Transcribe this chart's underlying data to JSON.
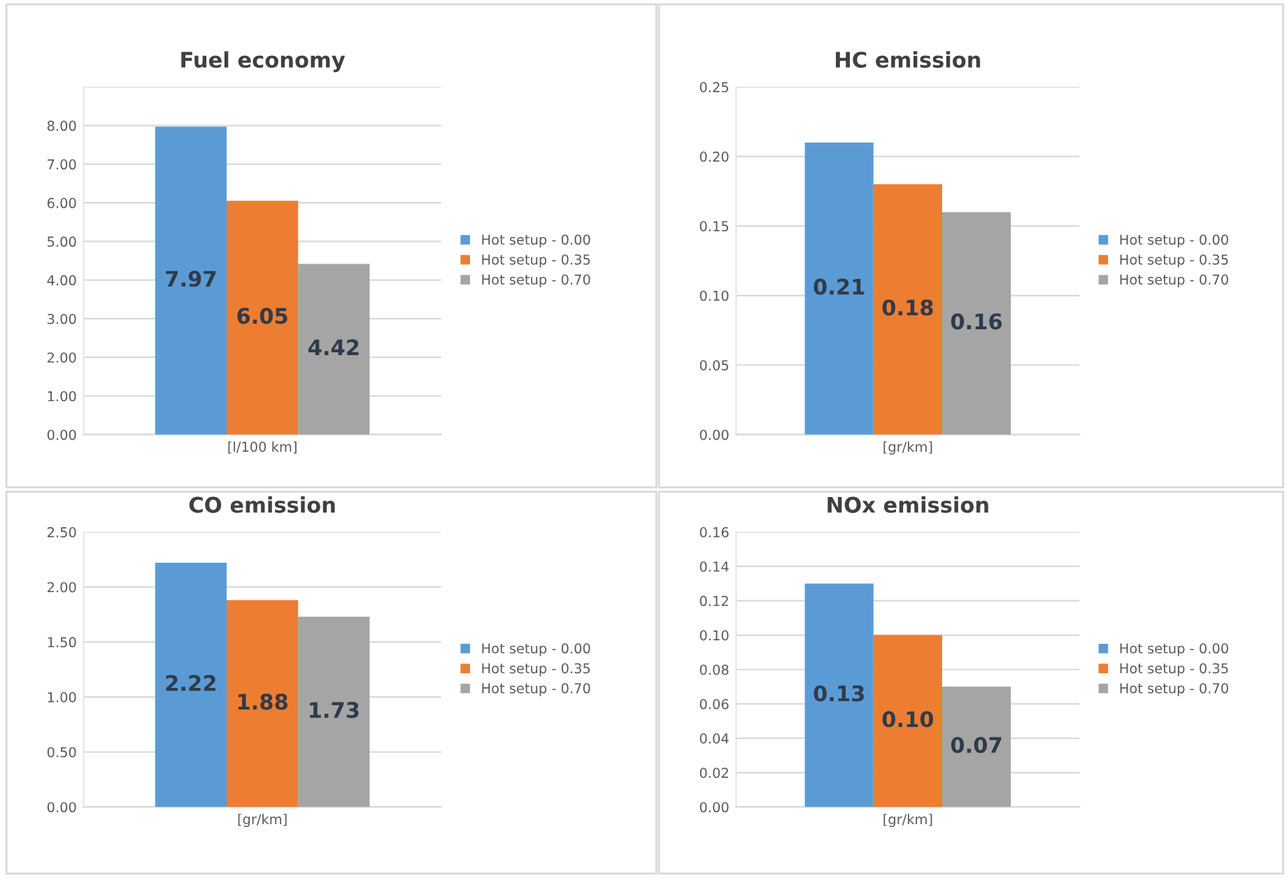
{
  "chart_data": [
    {
      "type": "bar",
      "title": "Fuel economy",
      "categories": [
        "[l/100 km]"
      ],
      "series": [
        {
          "name": "Hot setup - 0.00",
          "color": "#5b9bd5",
          "values": [
            7.97
          ],
          "value_labels": [
            "7.97"
          ]
        },
        {
          "name": "Hot setup - 0.35",
          "color": "#ed7d31",
          "values": [
            6.05
          ],
          "value_labels": [
            "6.05"
          ]
        },
        {
          "name": "Hot setup - 0.70",
          "color": "#a5a5a5",
          "values": [
            4.42
          ],
          "value_labels": [
            "4.42"
          ]
        }
      ],
      "ylim": [
        0,
        9
      ],
      "yticks": [
        {
          "value": 0,
          "label": "0.00"
        },
        {
          "value": 1,
          "label": "1.00"
        },
        {
          "value": 2,
          "label": "2.00"
        },
        {
          "value": 3,
          "label": "3.00"
        },
        {
          "value": 4,
          "label": "4.00"
        },
        {
          "value": 5,
          "label": "5.00"
        },
        {
          "value": 6,
          "label": "6.00"
        },
        {
          "value": 7,
          "label": "7.00"
        },
        {
          "value": 8,
          "label": "8.00"
        },
        {
          "value": 9,
          "label": null
        }
      ],
      "grid": "y",
      "legend": "right"
    },
    {
      "type": "bar",
      "title": "HC emission",
      "categories": [
        "[gr/km]"
      ],
      "series": [
        {
          "name": "Hot setup - 0.00",
          "color": "#5b9bd5",
          "values": [
            0.21
          ],
          "value_labels": [
            "0.21"
          ]
        },
        {
          "name": "Hot setup - 0.35",
          "color": "#ed7d31",
          "values": [
            0.18
          ],
          "value_labels": [
            "0.18"
          ]
        },
        {
          "name": "Hot setup - 0.70",
          "color": "#a5a5a5",
          "values": [
            0.16
          ],
          "value_labels": [
            "0.16"
          ]
        }
      ],
      "ylim": [
        0,
        0.25
      ],
      "yticks": [
        {
          "value": 0,
          "label": "0.00"
        },
        {
          "value": 0.05,
          "label": "0.05"
        },
        {
          "value": 0.1,
          "label": "0.10"
        },
        {
          "value": 0.15,
          "label": "0.15"
        },
        {
          "value": 0.2,
          "label": "0.20"
        },
        {
          "value": 0.25,
          "label": "0.25"
        }
      ],
      "grid": "y",
      "legend": "right"
    },
    {
      "type": "bar",
      "title": "CO emission",
      "categories": [
        "[gr/km]"
      ],
      "series": [
        {
          "name": "Hot setup - 0.00",
          "color": "#5b9bd5",
          "values": [
            2.22
          ],
          "value_labels": [
            "2.22"
          ]
        },
        {
          "name": "Hot setup - 0.35",
          "color": "#ed7d31",
          "values": [
            1.88
          ],
          "value_labels": [
            "1.88"
          ]
        },
        {
          "name": "Hot setup - 0.70",
          "color": "#a5a5a5",
          "values": [
            1.73
          ],
          "value_labels": [
            "1.73"
          ]
        }
      ],
      "ylim": [
        0,
        2.5
      ],
      "yticks": [
        {
          "value": 0,
          "label": "0.00"
        },
        {
          "value": 0.5,
          "label": "0.50"
        },
        {
          "value": 1,
          "label": "1.00"
        },
        {
          "value": 1.5,
          "label": "1.50"
        },
        {
          "value": 2,
          "label": "2.00"
        },
        {
          "value": 2.5,
          "label": "2.50"
        }
      ],
      "grid": "y",
      "legend": "right"
    },
    {
      "type": "bar",
      "title": "NOx emission",
      "categories": [
        "[gr/km]"
      ],
      "series": [
        {
          "name": "Hot setup - 0.00",
          "color": "#5b9bd5",
          "values": [
            0.13
          ],
          "value_labels": [
            "0.13"
          ]
        },
        {
          "name": "Hot setup - 0.35",
          "color": "#ed7d31",
          "values": [
            0.1
          ],
          "value_labels": [
            "0.10"
          ]
        },
        {
          "name": "Hot setup - 0.70",
          "color": "#a5a5a5",
          "values": [
            0.07
          ],
          "value_labels": [
            "0.07"
          ]
        }
      ],
      "ylim": [
        0,
        0.16
      ],
      "yticks": [
        {
          "value": 0,
          "label": "0.00"
        },
        {
          "value": 0.02,
          "label": "0.02"
        },
        {
          "value": 0.04,
          "label": "0.04"
        },
        {
          "value": 0.06,
          "label": "0.06"
        },
        {
          "value": 0.08,
          "label": "0.08"
        },
        {
          "value": 0.1,
          "label": "0.10"
        },
        {
          "value": 0.12,
          "label": "0.12"
        },
        {
          "value": 0.14,
          "label": "0.14"
        },
        {
          "value": 0.16,
          "label": "0.16"
        }
      ],
      "grid": "y",
      "legend": "right"
    }
  ]
}
